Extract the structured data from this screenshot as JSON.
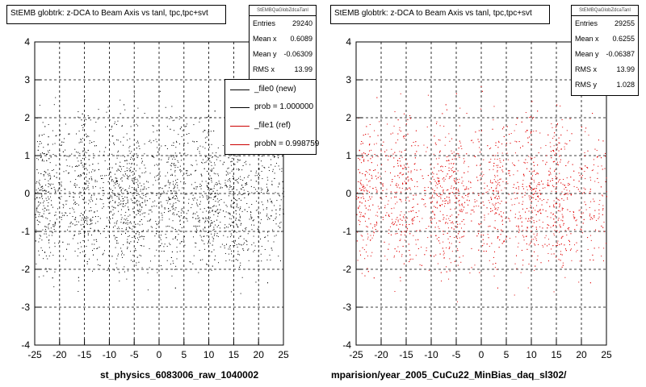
{
  "chart_data": [
    {
      "type": "scatter",
      "title": "StEMB globtrk: z-DCA to Beam Axis vs tanl, tpc,tpc+svt",
      "stats_name": "StEMBQaGlobZdcaTanl",
      "xlim": [
        -25,
        25
      ],
      "ylim": [
        -4,
        4
      ],
      "x_ticks": [
        -25,
        -20,
        -15,
        -10,
        -5,
        0,
        5,
        10,
        15,
        20,
        25
      ],
      "y_ticks": [
        -4,
        -3,
        -2,
        -1,
        0,
        1,
        2,
        3,
        4
      ],
      "grid": true,
      "marker_color": "#000000",
      "stats": [
        {
          "label": "Entries",
          "value": "29240"
        },
        {
          "label": "Mean x",
          "value": "0.6089"
        },
        {
          "label": "Mean y",
          "value": "-0.06309"
        },
        {
          "label": "RMS x",
          "value": "13.99"
        }
      ],
      "legend": {
        "placement": "top-right",
        "entries": [
          {
            "label": "_file0 (new)",
            "color": "#000000"
          },
          {
            "label": "prob = 1.000000",
            "color": "#000000"
          },
          {
            "label": "_file1 (ref)",
            "color": "#cc0000"
          },
          {
            "label": "probN = 0.998759",
            "color": "#cc0000"
          }
        ]
      },
      "footer": "st_physics_6083006_raw_1040002",
      "density_peaks_x": [
        -23,
        -15,
        -8,
        -5,
        3,
        10,
        15
      ],
      "density_peaks_y": [
        0
      ]
    },
    {
      "type": "scatter",
      "title": "StEMB globtrk: z-DCA to Beam Axis vs tanl, tpc,tpc+svt",
      "stats_name": "StEMBQaGlobZdcaTanl",
      "xlim": [
        -25,
        25
      ],
      "ylim": [
        -4,
        4
      ],
      "x_ticks": [
        -25,
        -20,
        -15,
        -10,
        -5,
        0,
        5,
        10,
        15,
        20,
        25
      ],
      "y_ticks": [
        -4,
        -3,
        -2,
        -1,
        0,
        1,
        2,
        3,
        4
      ],
      "grid": true,
      "marker_color": "#e00000",
      "stats": [
        {
          "label": "Entries",
          "value": "29255"
        },
        {
          "label": "Mean x",
          "value": "0.6255"
        },
        {
          "label": "Mean y",
          "value": "-0.06387"
        },
        {
          "label": "RMS x",
          "value": "13.99"
        },
        {
          "label": "RMS y",
          "value": "1.028"
        }
      ],
      "footer": "mparision/year_2005_CuCu22_MinBias_daq_sl302/",
      "density_peaks_x": [
        -23,
        -16,
        -8,
        -5,
        3,
        10,
        15
      ],
      "density_peaks_y": [
        0
      ]
    }
  ]
}
